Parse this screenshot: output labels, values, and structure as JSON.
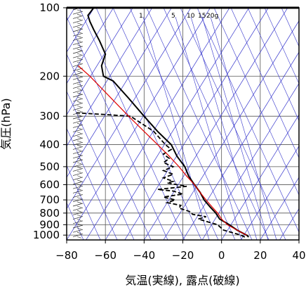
{
  "chart_data": {
    "type": "line",
    "title": "",
    "xlabel": "気温(実線), 露点(破線)",
    "ylabel": "気圧(hPa)",
    "xlim": [
      -80,
      40
    ],
    "ylim": [
      1050,
      100
    ],
    "y_scale": "log",
    "x_ticks": [
      -80,
      -60,
      -40,
      -20,
      0,
      20,
      40
    ],
    "y_ticks": [
      100,
      200,
      300,
      400,
      500,
      600,
      700,
      800,
      900,
      1000
    ],
    "grid": true,
    "legend": "none",
    "skew": "temperature isotherms skewed to the right with height",
    "mixing_ratio_labels": [
      "1",
      "5",
      "10",
      "15",
      "20g"
    ],
    "series": [
      {
        "role": "temperature",
        "style": "solid",
        "color": "#000000",
        "points": [
          [
            14,
            1020
          ],
          [
            13,
            1000
          ],
          [
            8,
            950
          ],
          [
            4,
            900
          ],
          [
            -1,
            850
          ],
          [
            -3,
            800
          ],
          [
            -6,
            750
          ],
          [
            -9,
            700
          ],
          [
            -11,
            650
          ],
          [
            -14,
            600
          ],
          [
            -17,
            550
          ],
          [
            -19,
            500
          ],
          [
            -23,
            450
          ],
          [
            -26,
            400
          ],
          [
            -33,
            350
          ],
          [
            -40,
            300
          ],
          [
            -48,
            250
          ],
          [
            -56,
            210
          ],
          [
            -61,
            200
          ],
          [
            -62,
            180
          ],
          [
            -60,
            160
          ],
          [
            -63,
            140
          ],
          [
            -66,
            125
          ],
          [
            -68,
            115
          ],
          [
            -69,
            108
          ],
          [
            -66,
            100
          ]
        ]
      },
      {
        "role": "dewpoint",
        "style": "dashed",
        "color": "#000000",
        "points": [
          [
            12,
            1020
          ],
          [
            10,
            1000
          ],
          [
            1,
            950
          ],
          [
            -2,
            900
          ],
          [
            -6,
            880
          ],
          [
            -12,
            850
          ],
          [
            -8,
            830
          ],
          [
            -15,
            810
          ],
          [
            -16,
            790
          ],
          [
            -22,
            760
          ],
          [
            -21,
            740
          ],
          [
            -28,
            720
          ],
          [
            -24,
            700
          ],
          [
            -30,
            680
          ],
          [
            -20,
            660
          ],
          [
            -25,
            640
          ],
          [
            -33,
            630
          ],
          [
            -18,
            610
          ],
          [
            -28,
            590
          ],
          [
            -25,
            580
          ],
          [
            -30,
            560
          ],
          [
            -25,
            540
          ],
          [
            -30,
            520
          ],
          [
            -25,
            500
          ],
          [
            -30,
            480
          ],
          [
            -27,
            460
          ],
          [
            -30,
            440
          ],
          [
            -26,
            420
          ],
          [
            -29,
            400
          ],
          [
            -35,
            350
          ],
          [
            -47,
            300
          ],
          [
            -60,
            295
          ],
          [
            -75,
            290
          ]
        ]
      },
      {
        "role": "parcel",
        "style": "solid",
        "color": "#e00000",
        "points": [
          [
            13,
            1000
          ],
          [
            8,
            950
          ],
          [
            3,
            900
          ],
          [
            0,
            850
          ],
          [
            -2,
            800
          ],
          [
            -5,
            750
          ],
          [
            -8,
            700
          ],
          [
            -11,
            650
          ],
          [
            -14,
            600
          ],
          [
            -18,
            550
          ],
          [
            -22,
            500
          ],
          [
            -27,
            450
          ],
          [
            -33,
            400
          ],
          [
            -40,
            350
          ],
          [
            -48,
            300
          ],
          [
            -57,
            250
          ],
          [
            -68,
            200
          ],
          [
            -74,
            180
          ]
        ]
      }
    ]
  }
}
